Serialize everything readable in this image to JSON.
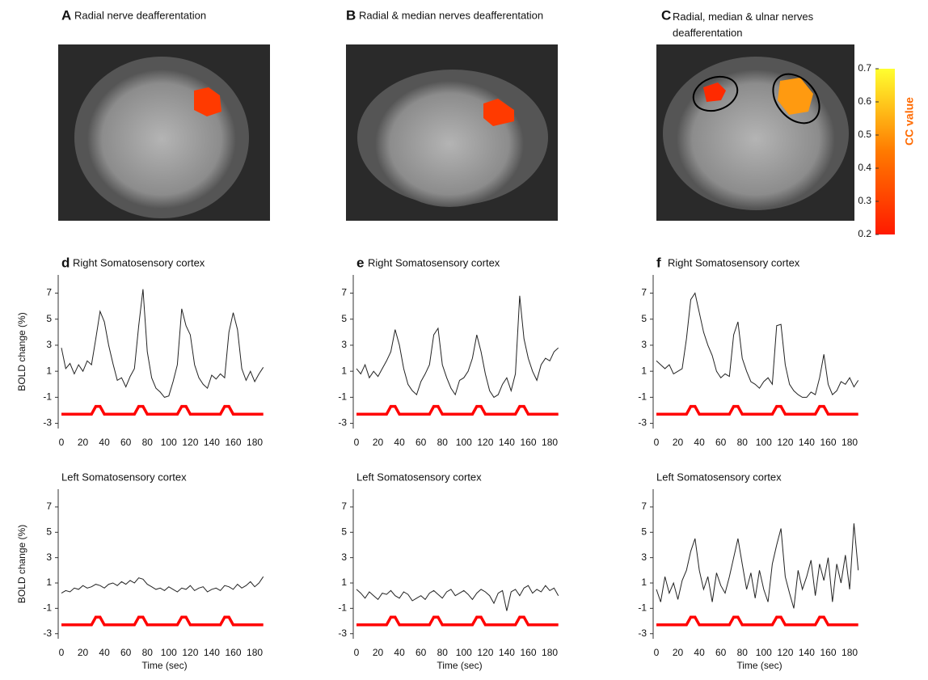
{
  "figure_panels": [
    {
      "letter": "A",
      "title": "Radial nerve deafferentation"
    },
    {
      "letter": "B",
      "title": "Radial & median nerves deafferentation"
    },
    {
      "letter": "C",
      "title": "Radial, median & ulnar nerves deafferentation"
    }
  ],
  "colorbar": {
    "label": "CC value",
    "lim": [
      0.2,
      0.7
    ],
    "ticks": [
      0.2,
      0.3,
      0.4,
      0.5,
      0.6,
      0.7
    ]
  },
  "chart_data": [
    {
      "type": "line",
      "letter": "d",
      "title": "Right Somatosensory cortex",
      "ylabel": "BOLD change (%)",
      "x": [
        0,
        4,
        8,
        12,
        16,
        20,
        24,
        28,
        32,
        36,
        40,
        44,
        48,
        52,
        56,
        60,
        64,
        68,
        72,
        76,
        80,
        84,
        88,
        92,
        96,
        100,
        104,
        108,
        112,
        116,
        120,
        124,
        128,
        132,
        136,
        140,
        144,
        148,
        152,
        156,
        160,
        164,
        168,
        172,
        176,
        180,
        184,
        188
      ],
      "series": [
        {
          "color": "#222222",
          "values": [
            2.8,
            1.2,
            1.6,
            0.8,
            1.5,
            1.0,
            1.8,
            1.5,
            3.5,
            5.6,
            4.8,
            3.0,
            1.6,
            0.3,
            0.5,
            -0.2,
            0.6,
            1.2,
            4.5,
            7.3,
            2.5,
            0.5,
            -0.3,
            -0.6,
            -1.0,
            -0.9,
            0.2,
            1.5,
            5.8,
            4.5,
            3.8,
            1.5,
            0.5,
            0.0,
            -0.3,
            0.7,
            0.4,
            0.8,
            0.5,
            4.0,
            5.5,
            4.2,
            1.2,
            0.3,
            1.0,
            0.2,
            0.8,
            1.3
          ]
        },
        {
          "color": "#ff0000",
          "values": [
            -2.3,
            -2.3,
            -2.3,
            -2.3,
            -2.3,
            -2.3,
            -2.3,
            -2.3,
            -1.7,
            -1.7,
            -2.3,
            -2.3,
            -2.3,
            -2.3,
            -2.3,
            -2.3,
            -2.3,
            -2.3,
            -1.7,
            -1.7,
            -2.3,
            -2.3,
            -2.3,
            -2.3,
            -2.3,
            -2.3,
            -2.3,
            -2.3,
            -1.7,
            -1.7,
            -2.3,
            -2.3,
            -2.3,
            -2.3,
            -2.3,
            -2.3,
            -2.3,
            -2.3,
            -1.7,
            -1.7,
            -2.3,
            -2.3,
            -2.3,
            -2.3,
            -2.3,
            -2.3,
            -2.3,
            -2.3
          ]
        }
      ],
      "xlim": [
        -3,
        195
      ],
      "ylim": [
        -3.4,
        8.4
      ],
      "xticks": [
        0,
        20,
        40,
        60,
        80,
        100,
        120,
        140,
        160,
        180
      ],
      "yticks": [
        -3,
        -1,
        1,
        3,
        5,
        7
      ]
    },
    {
      "type": "line",
      "letter": "e",
      "title": "Right Somatosensory cortex",
      "x": [
        0,
        4,
        8,
        12,
        16,
        20,
        24,
        28,
        32,
        36,
        40,
        44,
        48,
        52,
        56,
        60,
        64,
        68,
        72,
        76,
        80,
        84,
        88,
        92,
        96,
        100,
        104,
        108,
        112,
        116,
        120,
        124,
        128,
        132,
        136,
        140,
        144,
        148,
        152,
        156,
        160,
        164,
        168,
        172,
        176,
        180,
        184,
        188
      ],
      "series": [
        {
          "color": "#222222",
          "values": [
            1.2,
            0.8,
            1.5,
            0.5,
            1.0,
            0.6,
            1.2,
            1.8,
            2.5,
            4.2,
            3.0,
            1.2,
            0.0,
            -0.5,
            -0.8,
            0.2,
            0.8,
            1.5,
            3.8,
            4.3,
            1.5,
            0.5,
            -0.3,
            -0.8,
            0.3,
            0.5,
            1.0,
            2.0,
            3.8,
            2.5,
            0.8,
            -0.5,
            -1.0,
            -0.8,
            0.0,
            0.5,
            -0.5,
            0.8,
            6.8,
            3.5,
            2.0,
            1.0,
            0.3,
            1.5,
            2.0,
            1.8,
            2.5,
            2.8
          ]
        },
        {
          "color": "#ff0000",
          "values": [
            -2.3,
            -2.3,
            -2.3,
            -2.3,
            -2.3,
            -2.3,
            -2.3,
            -2.3,
            -1.7,
            -1.7,
            -2.3,
            -2.3,
            -2.3,
            -2.3,
            -2.3,
            -2.3,
            -2.3,
            -2.3,
            -1.7,
            -1.7,
            -2.3,
            -2.3,
            -2.3,
            -2.3,
            -2.3,
            -2.3,
            -2.3,
            -2.3,
            -1.7,
            -1.7,
            -2.3,
            -2.3,
            -2.3,
            -2.3,
            -2.3,
            -2.3,
            -2.3,
            -2.3,
            -1.7,
            -1.7,
            -2.3,
            -2.3,
            -2.3,
            -2.3,
            -2.3,
            -2.3,
            -2.3,
            -2.3
          ]
        }
      ],
      "xlim": [
        -3,
        195
      ],
      "ylim": [
        -3.4,
        8.4
      ],
      "xticks": [
        0,
        20,
        40,
        60,
        80,
        100,
        120,
        140,
        160,
        180
      ],
      "yticks": [
        -3,
        -1,
        1,
        3,
        5,
        7
      ]
    },
    {
      "type": "line",
      "letter": "f",
      "title": "Right Somatosensory cortex",
      "x": [
        0,
        4,
        8,
        12,
        16,
        20,
        24,
        28,
        32,
        36,
        40,
        44,
        48,
        52,
        56,
        60,
        64,
        68,
        72,
        76,
        80,
        84,
        88,
        92,
        96,
        100,
        104,
        108,
        112,
        116,
        120,
        124,
        128,
        132,
        136,
        140,
        144,
        148,
        152,
        156,
        160,
        164,
        168,
        172,
        176,
        180,
        184,
        188
      ],
      "series": [
        {
          "color": "#222222",
          "values": [
            1.8,
            1.5,
            1.2,
            1.5,
            0.8,
            1.0,
            1.2,
            3.5,
            6.5,
            7.0,
            5.5,
            4.0,
            3.0,
            2.2,
            1.0,
            0.5,
            0.8,
            0.6,
            3.8,
            4.8,
            2.0,
            1.0,
            0.2,
            0.0,
            -0.3,
            0.2,
            0.5,
            0.0,
            4.5,
            4.6,
            1.5,
            0.0,
            -0.5,
            -0.8,
            -1.0,
            -1.0,
            -0.6,
            -0.8,
            0.5,
            2.3,
            0.0,
            -0.8,
            -0.5,
            0.2,
            0.0,
            0.5,
            -0.2,
            0.3
          ]
        },
        {
          "color": "#ff0000",
          "values": [
            -2.3,
            -2.3,
            -2.3,
            -2.3,
            -2.3,
            -2.3,
            -2.3,
            -2.3,
            -1.7,
            -1.7,
            -2.3,
            -2.3,
            -2.3,
            -2.3,
            -2.3,
            -2.3,
            -2.3,
            -2.3,
            -1.7,
            -1.7,
            -2.3,
            -2.3,
            -2.3,
            -2.3,
            -2.3,
            -2.3,
            -2.3,
            -2.3,
            -1.7,
            -1.7,
            -2.3,
            -2.3,
            -2.3,
            -2.3,
            -2.3,
            -2.3,
            -2.3,
            -2.3,
            -1.7,
            -1.7,
            -2.3,
            -2.3,
            -2.3,
            -2.3,
            -2.3,
            -2.3,
            -2.3,
            -2.3
          ]
        }
      ],
      "xlim": [
        -3,
        195
      ],
      "ylim": [
        -3.4,
        8.4
      ],
      "xticks": [
        0,
        20,
        40,
        60,
        80,
        100,
        120,
        140,
        160,
        180
      ],
      "yticks": [
        -3,
        -1,
        1,
        3,
        5,
        7
      ]
    },
    {
      "type": "line",
      "title": "Left Somatosensory cortex",
      "ylabel": "BOLD change (%)",
      "xlabel": "Time (sec)",
      "x": [
        0,
        4,
        8,
        12,
        16,
        20,
        24,
        28,
        32,
        36,
        40,
        44,
        48,
        52,
        56,
        60,
        64,
        68,
        72,
        76,
        80,
        84,
        88,
        92,
        96,
        100,
        104,
        108,
        112,
        116,
        120,
        124,
        128,
        132,
        136,
        140,
        144,
        148,
        152,
        156,
        160,
        164,
        168,
        172,
        176,
        180,
        184,
        188
      ],
      "series": [
        {
          "color": "#222222",
          "values": [
            0.2,
            0.4,
            0.3,
            0.6,
            0.5,
            0.8,
            0.6,
            0.7,
            0.9,
            0.8,
            0.6,
            0.9,
            1.0,
            0.8,
            1.1,
            0.9,
            1.2,
            1.0,
            1.4,
            1.3,
            0.9,
            0.7,
            0.5,
            0.6,
            0.4,
            0.7,
            0.5,
            0.3,
            0.6,
            0.5,
            0.8,
            0.4,
            0.6,
            0.7,
            0.3,
            0.5,
            0.6,
            0.4,
            0.8,
            0.7,
            0.5,
            0.9,
            0.6,
            0.8,
            1.1,
            0.7,
            1.0,
            1.5
          ]
        },
        {
          "color": "#ff0000",
          "values": [
            -2.3,
            -2.3,
            -2.3,
            -2.3,
            -2.3,
            -2.3,
            -2.3,
            -2.3,
            -1.7,
            -1.7,
            -2.3,
            -2.3,
            -2.3,
            -2.3,
            -2.3,
            -2.3,
            -2.3,
            -2.3,
            -1.7,
            -1.7,
            -2.3,
            -2.3,
            -2.3,
            -2.3,
            -2.3,
            -2.3,
            -2.3,
            -2.3,
            -1.7,
            -1.7,
            -2.3,
            -2.3,
            -2.3,
            -2.3,
            -2.3,
            -2.3,
            -2.3,
            -2.3,
            -1.7,
            -1.7,
            -2.3,
            -2.3,
            -2.3,
            -2.3,
            -2.3,
            -2.3,
            -2.3,
            -2.3
          ]
        }
      ],
      "xlim": [
        -3,
        195
      ],
      "ylim": [
        -3.4,
        8.4
      ],
      "xticks": [
        0,
        20,
        40,
        60,
        80,
        100,
        120,
        140,
        160,
        180
      ],
      "yticks": [
        -3,
        -1,
        1,
        3,
        5,
        7
      ]
    },
    {
      "type": "line",
      "title": "Left Somatosensory cortex",
      "xlabel": "Time (sec)",
      "x": [
        0,
        4,
        8,
        12,
        16,
        20,
        24,
        28,
        32,
        36,
        40,
        44,
        48,
        52,
        56,
        60,
        64,
        68,
        72,
        76,
        80,
        84,
        88,
        92,
        96,
        100,
        104,
        108,
        112,
        116,
        120,
        124,
        128,
        132,
        136,
        140,
        144,
        148,
        152,
        156,
        160,
        164,
        168,
        172,
        176,
        180,
        184,
        188
      ],
      "series": [
        {
          "color": "#222222",
          "values": [
            0.5,
            0.2,
            -0.2,
            0.3,
            0.0,
            -0.3,
            0.2,
            0.1,
            0.4,
            0.0,
            -0.2,
            0.3,
            0.1,
            -0.4,
            -0.2,
            0.0,
            -0.3,
            0.2,
            0.4,
            0.1,
            -0.2,
            0.3,
            0.5,
            0.0,
            0.2,
            0.4,
            0.1,
            -0.3,
            0.2,
            0.5,
            0.3,
            0.0,
            -0.6,
            0.2,
            0.4,
            -1.2,
            0.3,
            0.5,
            0.0,
            0.6,
            0.8,
            0.2,
            0.5,
            0.3,
            0.8,
            0.4,
            0.6,
            0.0
          ]
        },
        {
          "color": "#ff0000",
          "values": [
            -2.3,
            -2.3,
            -2.3,
            -2.3,
            -2.3,
            -2.3,
            -2.3,
            -2.3,
            -1.7,
            -1.7,
            -2.3,
            -2.3,
            -2.3,
            -2.3,
            -2.3,
            -2.3,
            -2.3,
            -2.3,
            -1.7,
            -1.7,
            -2.3,
            -2.3,
            -2.3,
            -2.3,
            -2.3,
            -2.3,
            -2.3,
            -2.3,
            -1.7,
            -1.7,
            -2.3,
            -2.3,
            -2.3,
            -2.3,
            -2.3,
            -2.3,
            -2.3,
            -2.3,
            -1.7,
            -1.7,
            -2.3,
            -2.3,
            -2.3,
            -2.3,
            -2.3,
            -2.3,
            -2.3,
            -2.3
          ]
        }
      ],
      "xlim": [
        -3,
        195
      ],
      "ylim": [
        -3.4,
        8.4
      ],
      "xticks": [
        0,
        20,
        40,
        60,
        80,
        100,
        120,
        140,
        160,
        180
      ],
      "yticks": [
        -3,
        -1,
        1,
        3,
        5,
        7
      ]
    },
    {
      "type": "line",
      "title": "Left Somatosensory cortex",
      "xlabel": "Time (sec)",
      "x": [
        0,
        4,
        8,
        12,
        16,
        20,
        24,
        28,
        32,
        36,
        40,
        44,
        48,
        52,
        56,
        60,
        64,
        68,
        72,
        76,
        80,
        84,
        88,
        92,
        96,
        100,
        104,
        108,
        112,
        116,
        120,
        124,
        128,
        132,
        136,
        140,
        144,
        148,
        152,
        156,
        160,
        164,
        168,
        172,
        176,
        180,
        184,
        188
      ],
      "series": [
        {
          "color": "#222222",
          "values": [
            0.5,
            -0.5,
            1.5,
            0.2,
            1.0,
            -0.3,
            1.2,
            2.0,
            3.5,
            4.5,
            2.0,
            0.5,
            1.5,
            -0.5,
            1.8,
            0.8,
            0.2,
            1.5,
            3.0,
            4.5,
            2.5,
            0.5,
            1.8,
            -0.2,
            2.0,
            0.5,
            -0.5,
            2.5,
            4.0,
            5.3,
            1.5,
            0.2,
            -1.0,
            2.0,
            0.5,
            1.5,
            2.8,
            0.0,
            2.5,
            1.2,
            3.0,
            -0.5,
            2.5,
            1.0,
            3.2,
            0.5,
            5.7,
            2.0
          ]
        },
        {
          "color": "#ff0000",
          "values": [
            -2.3,
            -2.3,
            -2.3,
            -2.3,
            -2.3,
            -2.3,
            -2.3,
            -2.3,
            -1.7,
            -1.7,
            -2.3,
            -2.3,
            -2.3,
            -2.3,
            -2.3,
            -2.3,
            -2.3,
            -2.3,
            -1.7,
            -1.7,
            -2.3,
            -2.3,
            -2.3,
            -2.3,
            -2.3,
            -2.3,
            -2.3,
            -2.3,
            -1.7,
            -1.7,
            -2.3,
            -2.3,
            -2.3,
            -2.3,
            -2.3,
            -2.3,
            -2.3,
            -2.3,
            -1.7,
            -1.7,
            -2.3,
            -2.3,
            -2.3,
            -2.3,
            -2.3,
            -2.3,
            -2.3,
            -2.3
          ]
        }
      ],
      "xlim": [
        -3,
        195
      ],
      "ylim": [
        -3.4,
        8.4
      ],
      "xticks": [
        0,
        20,
        40,
        60,
        80,
        100,
        120,
        140,
        160,
        180
      ],
      "yticks": [
        -3,
        -1,
        1,
        3,
        5,
        7
      ]
    }
  ]
}
